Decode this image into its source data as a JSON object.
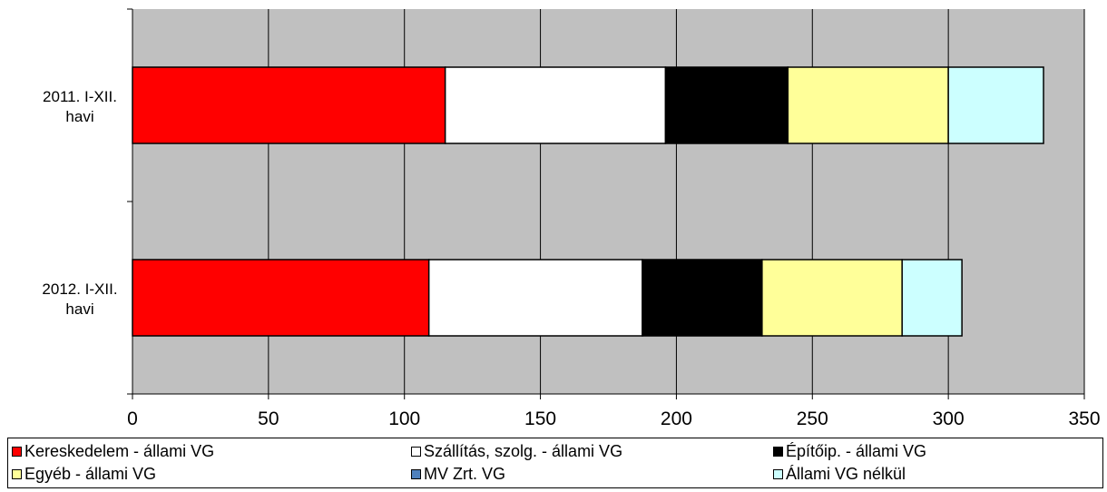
{
  "chart_data": {
    "type": "bar",
    "orientation": "horizontal",
    "stacked": true,
    "categories": [
      "2011. I-XII. havi",
      "2012. I-XII. havi"
    ],
    "series": [
      {
        "name": "Kereskedelem - állami VG",
        "color": "#ff0000",
        "values": [
          115,
          109
        ]
      },
      {
        "name": "Szállítás, szolg. - állami VG",
        "color": "#ffffff",
        "values": [
          81,
          78.5
        ]
      },
      {
        "name": "Építőip. - állami VG",
        "color": "#000000",
        "values": [
          45,
          44
        ]
      },
      {
        "name": "Egyéb - állami VG",
        "color": "#ffff99",
        "values": [
          59,
          51.5
        ]
      },
      {
        "name": "MV Zrt. VG",
        "color": "#4f81bd",
        "values": [
          0,
          0
        ]
      },
      {
        "name": "Állami VG nélkül",
        "color": "#ccffff",
        "values": [
          35,
          22
        ]
      }
    ],
    "xlim": [
      0,
      350
    ],
    "xticks": [
      "0",
      "50",
      "100",
      "150",
      "200",
      "250",
      "300",
      "350"
    ],
    "grid": true,
    "legend_position": "bottom",
    "plot_background": "#c0c0c0"
  }
}
